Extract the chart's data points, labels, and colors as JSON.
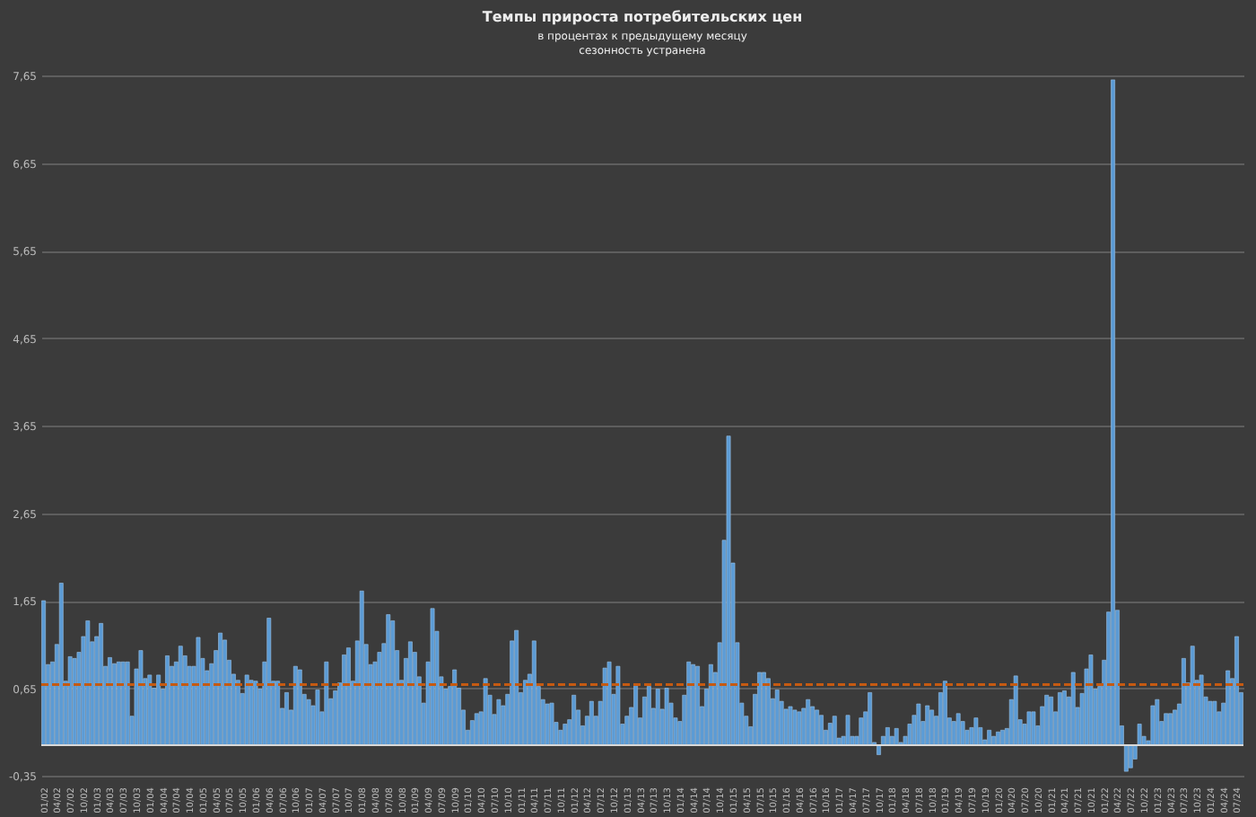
{
  "chart_data": {
    "type": "bar",
    "title": "Темпы прироста потребительских цен",
    "subtitle": [
      "в процентах к предыдущему месяцу",
      "сезонность устранена"
    ],
    "color": "#5b9bd5",
    "values": [
      1.65,
      0.92,
      0.95,
      1.15,
      1.85,
      0.73,
      1.01,
      0.99,
      1.06,
      1.24,
      1.42,
      1.18,
      1.24,
      1.39,
      0.9,
      1.0,
      0.93,
      0.95,
      0.95,
      0.95,
      0.33,
      0.87,
      1.08,
      0.76,
      0.8,
      0.65,
      0.8,
      0.64,
      1.02,
      0.9,
      0.95,
      1.13,
      1.02,
      0.9,
      0.9,
      1.23,
      0.99,
      0.85,
      0.93,
      1.08,
      1.28,
      1.2,
      0.97,
      0.81,
      0.74,
      0.59,
      0.8,
      0.74,
      0.73,
      0.64,
      0.95,
      1.45,
      0.73,
      0.73,
      0.42,
      0.6,
      0.4,
      0.9,
      0.86,
      0.58,
      0.52,
      0.45,
      0.63,
      0.38,
      0.95,
      0.53,
      0.62,
      0.71,
      1.03,
      1.11,
      0.73,
      1.19,
      1.76,
      1.15,
      0.92,
      0.95,
      1.06,
      1.16,
      1.49,
      1.42,
      1.08,
      0.74,
      0.99,
      1.18,
      1.06,
      0.78,
      0.48,
      0.95,
      1.56,
      1.3,
      0.78,
      0.64,
      0.67,
      0.86,
      0.65,
      0.4,
      0.17,
      0.28,
      0.36,
      0.38,
      0.76,
      0.57,
      0.35,
      0.52,
      0.45,
      0.58,
      1.19,
      1.31,
      0.6,
      0.74,
      0.81,
      1.19,
      0.67,
      0.52,
      0.47,
      0.48,
      0.26,
      0.17,
      0.24,
      0.29,
      0.57,
      0.4,
      0.22,
      0.33,
      0.5,
      0.33,
      0.5,
      0.88,
      0.95,
      0.58,
      0.9,
      0.24,
      0.33,
      0.43,
      0.69,
      0.31,
      0.55,
      0.67,
      0.42,
      0.64,
      0.41,
      0.65,
      0.48,
      0.31,
      0.27,
      0.57,
      0.95,
      0.92,
      0.9,
      0.44,
      0.64,
      0.92,
      0.83,
      1.17,
      2.34,
      3.53,
      2.08,
      1.17,
      0.48,
      0.33,
      0.21,
      0.58,
      0.83,
      0.83,
      0.76,
      0.53,
      0.63,
      0.5,
      0.41,
      0.44,
      0.4,
      0.38,
      0.42,
      0.52,
      0.44,
      0.4,
      0.34,
      0.17,
      0.25,
      0.33,
      0.08,
      0.1,
      0.34,
      0.1,
      0.1,
      0.31,
      0.38,
      0.6,
      0.03,
      -0.11,
      0.1,
      0.2,
      0.1,
      0.19,
      0.03,
      0.1,
      0.24,
      0.34,
      0.47,
      0.27,
      0.45,
      0.4,
      0.33,
      0.6,
      0.73,
      0.31,
      0.27,
      0.36,
      0.27,
      0.17,
      0.2,
      0.31,
      0.2,
      0.06,
      0.17,
      0.1,
      0.15,
      0.17,
      0.19,
      0.52,
      0.79,
      0.29,
      0.24,
      0.38,
      0.38,
      0.22,
      0.44,
      0.57,
      0.55,
      0.38,
      0.6,
      0.62,
      0.55,
      0.83,
      0.43,
      0.59,
      0.87,
      1.03,
      0.64,
      0.67,
      0.97,
      1.52,
      7.6,
      1.54,
      0.22,
      -0.3,
      -0.26,
      -0.16,
      0.24,
      0.1,
      0.05,
      0.45,
      0.52,
      0.27,
      0.36,
      0.36,
      0.4,
      0.47,
      0.99,
      0.71,
      1.13,
      0.74,
      0.8,
      0.55,
      0.5,
      0.5,
      0.38,
      0.48,
      0.85,
      0.76,
      1.24,
      0.6
    ],
    "ylim": [
      -0.35,
      7.65
    ],
    "yticks": [
      {
        "value": -0.35,
        "label": "-0,35"
      },
      {
        "value": 0.65,
        "label": "0,65"
      },
      {
        "value": 1.65,
        "label": "1,65"
      },
      {
        "value": 2.65,
        "label": "2,65"
      },
      {
        "value": 3.65,
        "label": "3,65"
      },
      {
        "value": 4.65,
        "label": "4,65"
      },
      {
        "value": 5.65,
        "label": "5,65"
      },
      {
        "value": 6.65,
        "label": "6,65"
      },
      {
        "value": 7.65,
        "label": "7,65"
      }
    ],
    "ref_lines": [
      {
        "axis": "y",
        "value": 0.69,
        "color": "#c55a11",
        "line_style": "dashed"
      }
    ],
    "grid": "y",
    "categories": [
      "01/02",
      null,
      null,
      "04/02",
      null,
      null,
      "07/02",
      null,
      null,
      "10/02",
      null,
      null,
      "01/03",
      null,
      null,
      "04/03",
      null,
      null,
      "07/03",
      null,
      null,
      "10/03",
      null,
      null,
      "01/04",
      null,
      null,
      "04/04",
      null,
      null,
      "07/04",
      null,
      null,
      "10/04",
      null,
      null,
      "01/05",
      null,
      null,
      "04/05",
      null,
      null,
      "07/05",
      null,
      null,
      "10/05",
      null,
      null,
      "01/06",
      null,
      null,
      "04/06",
      null,
      null,
      "07/06",
      null,
      null,
      "10/06",
      null,
      null,
      "01/07",
      null,
      null,
      "04/07",
      null,
      null,
      "07/07",
      null,
      null,
      "10/07",
      null,
      null,
      "01/08",
      null,
      null,
      "04/08",
      null,
      null,
      "07/08",
      null,
      null,
      "10/08",
      null,
      null,
      "01/09",
      null,
      null,
      "04/09",
      null,
      null,
      "07/09",
      null,
      null,
      "10/09",
      null,
      null,
      "01/10",
      null,
      null,
      "04/10",
      null,
      null,
      "07/10",
      null,
      null,
      "10/10",
      null,
      null,
      "01/11",
      null,
      null,
      "04/11",
      null,
      null,
      "07/11",
      null,
      null,
      "10/11",
      null,
      null,
      "01/12",
      null,
      null,
      "04/12",
      null,
      null,
      "07/12",
      null,
      null,
      "10/12",
      null,
      null,
      "01/13",
      null,
      null,
      "04/13",
      null,
      null,
      "07/13",
      null,
      null,
      "10/13",
      null,
      null,
      "01/14",
      null,
      null,
      "04/14",
      null,
      null,
      "07/14",
      null,
      null,
      "10/14",
      null,
      null,
      "01/15",
      null,
      null,
      "04/15",
      null,
      null,
      "07/15",
      null,
      null,
      "10/15",
      null,
      null,
      "01/16",
      null,
      null,
      "04/16",
      null,
      null,
      "07/16",
      null,
      null,
      "10/16",
      null,
      null,
      "01/17",
      null,
      null,
      "04/17",
      null,
      null,
      "07/17",
      null,
      null,
      "10/17",
      null,
      null,
      "01/18",
      null,
      null,
      "04/18",
      null,
      null,
      "07/18",
      null,
      null,
      "10/18",
      null,
      null,
      "01/19",
      null,
      null,
      "04/19",
      null,
      null,
      "07/19",
      null,
      null,
      "10/19",
      null,
      null,
      "01/20",
      null,
      null,
      "04/20",
      null,
      null,
      "07/20",
      null,
      null,
      "10/20",
      null,
      null,
      "01/21",
      null,
      null,
      "04/21",
      null,
      null,
      "07/21",
      null,
      null,
      "10/21",
      null,
      null,
      "01/22",
      null,
      null,
      "04/22",
      null,
      null,
      "07/22",
      null,
      null,
      "10/22",
      null,
      null,
      "01/23",
      null,
      null,
      "04/23",
      null,
      null,
      "07/23",
      null,
      null,
      "10/23",
      null,
      null,
      "01/24",
      null,
      null,
      "04/24",
      null,
      null,
      "07/24",
      null
    ]
  }
}
